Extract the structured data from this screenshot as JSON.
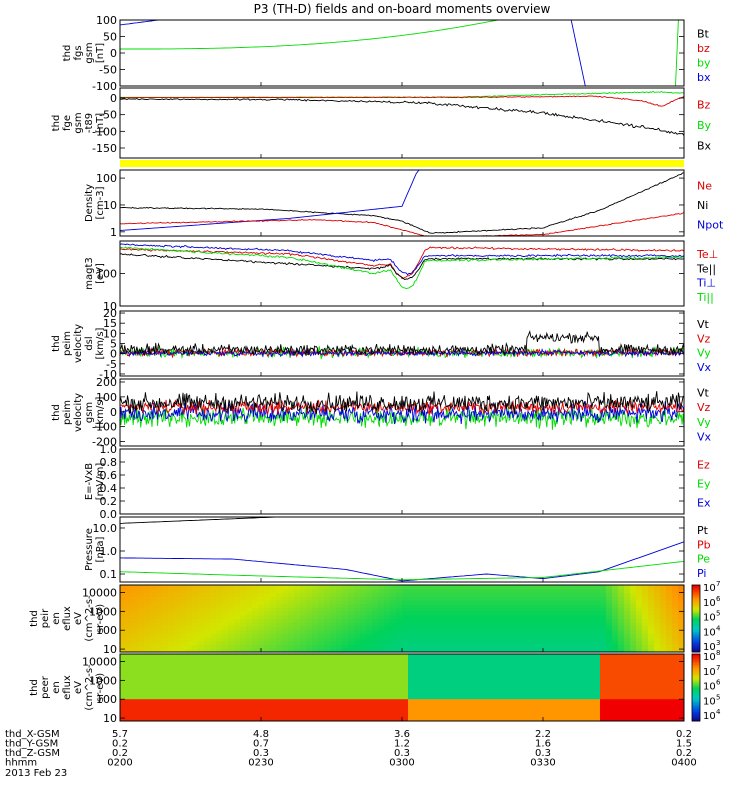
{
  "title": "P3 (TH-D) fields and on-board moments overview",
  "colors": {
    "black": "#000000",
    "red": "#dd0000",
    "green": "#00dd00",
    "blue": "#0000dd",
    "yellow": "#ffff00"
  },
  "chart_data": [
    {
      "type": "line",
      "ylabel": [
        "thd",
        "fgs",
        "gsm",
        "[nT]"
      ],
      "ylim": [
        -100,
        100
      ],
      "yticks": [
        {
          "value": 100,
          "label": "100"
        },
        {
          "value": 50,
          "label": "50"
        },
        {
          "value": 0,
          "label": "0"
        },
        {
          "value": -50,
          "label": "-50"
        },
        {
          "value": -100,
          "label": "-100"
        }
      ],
      "legend": [
        {
          "label": "Bt",
          "color": "#000000"
        },
        {
          "label": "bz",
          "color": "#dd0000"
        },
        {
          "label": "by",
          "color": "#00dd00"
        },
        {
          "label": "bx",
          "color": "#0000dd"
        }
      ]
    },
    {
      "type": "line",
      "ylabel": [
        "thd",
        "fge",
        "gsm",
        "-t89",
        "[nT]"
      ],
      "ylim": [
        -180,
        30
      ],
      "yticks": [
        {
          "value": 0,
          "label": "0"
        },
        {
          "value": -50,
          "label": "-50"
        },
        {
          "value": -100,
          "label": "-100"
        },
        {
          "value": -150,
          "label": "-150"
        }
      ],
      "legend": [
        {
          "label": "Bz",
          "color": "#dd0000"
        },
        {
          "label": "By",
          "color": "#00dd00"
        },
        {
          "label": "Bx",
          "color": "#000000"
        }
      ]
    },
    {
      "type": "line",
      "scale": "log",
      "ylabel": [
        "Density",
        "[cm-3]"
      ],
      "ylim": [
        0.7,
        200
      ],
      "yticks": [
        {
          "value": 100,
          "label": "100"
        },
        {
          "value": 10,
          "label": "10"
        },
        {
          "value": 1,
          "label": "1"
        }
      ],
      "legend": [
        {
          "label": "Ne",
          "color": "#dd0000"
        },
        {
          "label": "Ni",
          "color": "#000000"
        },
        {
          "label": "Npot",
          "color": "#0000dd"
        }
      ]
    },
    {
      "type": "line",
      "scale": "log",
      "ylabel": [
        "magt3",
        "[eV]"
      ],
      "ylim": [
        10,
        1000
      ],
      "yticks": [
        {
          "value": 100,
          "label": "100"
        },
        {
          "value": 10,
          "label": "10"
        }
      ],
      "legend": [
        {
          "label": "Te⊥",
          "color": "#dd0000"
        },
        {
          "label": "Te||",
          "color": "#000000"
        },
        {
          "label": "Ti⊥",
          "color": "#0000dd"
        },
        {
          "label": "Ti||",
          "color": "#00dd00"
        }
      ]
    },
    {
      "type": "line",
      "ylabel": [
        "thd",
        "peim",
        "velocity",
        "dsl",
        "[km/s]"
      ],
      "ylim": [
        -11,
        21
      ],
      "yticks": [
        {
          "value": 20,
          "label": "20"
        },
        {
          "value": 15,
          "label": "15"
        },
        {
          "value": 10,
          "label": "10"
        },
        {
          "value": 5,
          "label": "5"
        },
        {
          "value": 0,
          "label": "0"
        },
        {
          "value": -5,
          "label": "-5"
        },
        {
          "value": -10,
          "label": "-10"
        }
      ],
      "legend": [
        {
          "label": "Vt",
          "color": "#000000"
        },
        {
          "label": "Vz",
          "color": "#dd0000"
        },
        {
          "label": "Vy",
          "color": "#00dd00"
        },
        {
          "label": "Vx",
          "color": "#0000dd"
        }
      ]
    },
    {
      "type": "line",
      "ylabel": [
        "thd",
        "peim",
        "velocity",
        "gsm",
        "[km/s]"
      ],
      "ylim": [
        -230,
        220
      ],
      "yticks": [
        {
          "value": 200,
          "label": "200"
        },
        {
          "value": 100,
          "label": "100"
        },
        {
          "value": 0,
          "label": "0"
        },
        {
          "value": -100,
          "label": "-100"
        },
        {
          "value": -200,
          "label": "-200"
        }
      ],
      "legend": [
        {
          "label": "Vt",
          "color": "#000000"
        },
        {
          "label": "Vz",
          "color": "#dd0000"
        },
        {
          "label": "Vy",
          "color": "#00dd00"
        },
        {
          "label": "Vx",
          "color": "#0000dd"
        }
      ]
    },
    {
      "type": "line",
      "ylabel": [
        "E=-VxB",
        "[mV/m]"
      ],
      "ylim": [
        0,
        1
      ],
      "yticks": [
        {
          "value": 1.0,
          "label": "1.0"
        },
        {
          "value": 0.8,
          "label": "0.8"
        },
        {
          "value": 0.6,
          "label": "0.6"
        },
        {
          "value": 0.4,
          "label": "0.4"
        },
        {
          "value": 0.2,
          "label": "0.2"
        },
        {
          "value": 0.0,
          "label": "0.0"
        }
      ],
      "legend": [
        {
          "label": "Ez",
          "color": "#dd0000"
        },
        {
          "label": "Ey",
          "color": "#00dd00"
        },
        {
          "label": "Ex",
          "color": "#0000dd"
        }
      ]
    },
    {
      "type": "line",
      "scale": "log",
      "ylabel": [
        "Pressure",
        "[nPa]"
      ],
      "ylim": [
        0.045,
        30
      ],
      "yticks": [
        {
          "value": 10,
          "label": "10.0"
        },
        {
          "value": 1,
          "label": "1.0"
        },
        {
          "value": 0.1,
          "label": "0.1"
        }
      ],
      "legend": [
        {
          "label": "Pt",
          "color": "#000000"
        },
        {
          "label": "Pb",
          "color": "#dd0000"
        },
        {
          "label": "Pe",
          "color": "#00dd00"
        },
        {
          "label": "Pi",
          "color": "#0000dd"
        }
      ]
    },
    {
      "type": "heatmap",
      "scale": "log",
      "ylabel": [
        "thd",
        "peir",
        "en",
        "eflux",
        "eV",
        "(cm^2-s-",
        "sr-eV)"
      ],
      "ylim": [
        7,
        25000
      ],
      "yticks": [
        {
          "value": 10000,
          "label": "10000"
        },
        {
          "value": 1000,
          "label": "1000"
        },
        {
          "value": 100,
          "label": "100"
        },
        {
          "value": 10,
          "label": "10"
        }
      ],
      "colorbar": {
        "exp_min": 3,
        "exp_max": 7,
        "labels": [
          "10",
          "10",
          "10",
          "10",
          "10"
        ],
        "exponents": [
          "7",
          "6",
          "5",
          "4",
          "3"
        ]
      }
    },
    {
      "type": "heatmap",
      "scale": "log",
      "ylabel": [
        "thd",
        "peer",
        "en",
        "eflux",
        "eV",
        "(cm^2-s-",
        "sr-eV)"
      ],
      "ylim": [
        7,
        25000
      ],
      "yticks": [
        {
          "value": 10000,
          "label": "10000"
        },
        {
          "value": 1000,
          "label": "1000"
        },
        {
          "value": 100,
          "label": "100"
        },
        {
          "value": 10,
          "label": "10"
        }
      ],
      "colorbar": {
        "exp_min": 4,
        "exp_max": 8,
        "labels": [
          "10",
          "10",
          "10",
          "10",
          "10"
        ],
        "exponents": [
          "8",
          "7",
          "6",
          "5",
          "4"
        ]
      }
    }
  ],
  "xaxis": {
    "rows": [
      {
        "label": "thd_X-GSM",
        "values": [
          "5.7",
          "4.8",
          "3.6",
          "2.2",
          "0.2"
        ]
      },
      {
        "label": "thd_Y-GSM",
        "values": [
          "0.2",
          "0.7",
          "1.2",
          "1.6",
          "1.5"
        ]
      },
      {
        "label": "thd_Z-GSM",
        "values": [
          "0.2",
          "0.3",
          "0.3",
          "0.3",
          "0.2"
        ]
      },
      {
        "label": "hhmm",
        "values": [
          "0200",
          "0230",
          "0300",
          "0330",
          "0400"
        ]
      }
    ],
    "date": "2013 Feb 23"
  }
}
